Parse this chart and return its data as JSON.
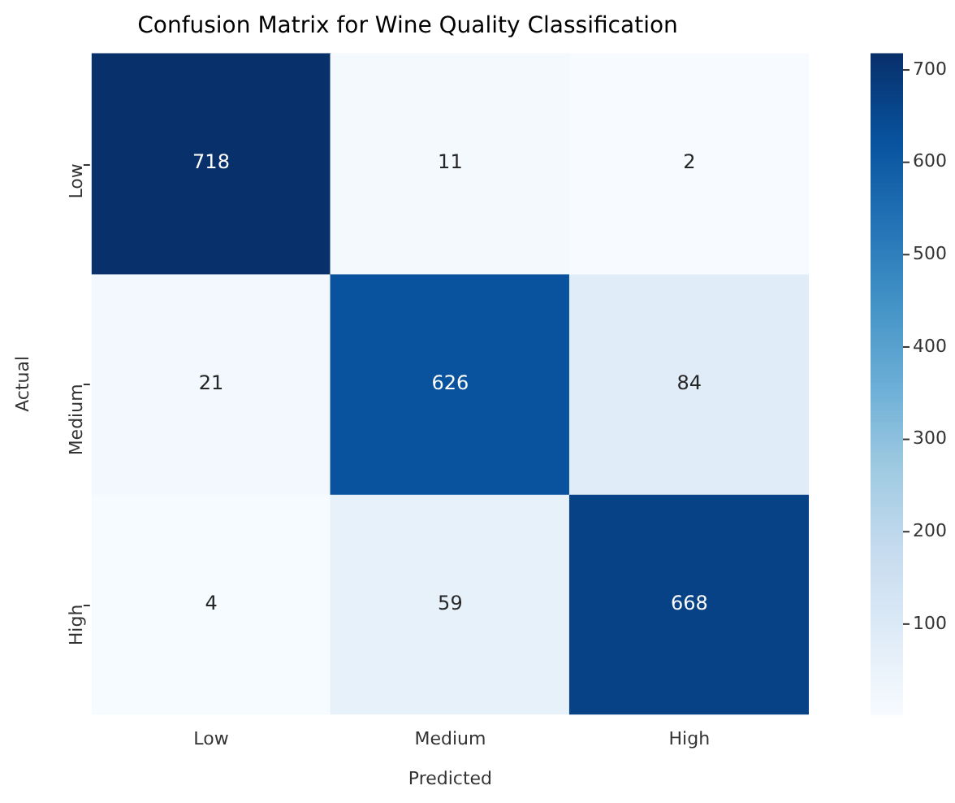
{
  "chart_data": {
    "type": "heatmap",
    "title": "Confusion Matrix for Wine Quality Classification",
    "xlabel": "Predicted",
    "ylabel": "Actual",
    "categories": [
      "Low",
      "Medium",
      "High"
    ],
    "y_categories": [
      "Low",
      "Medium",
      "High"
    ],
    "cells": [
      [
        718,
        11,
        2
      ],
      [
        21,
        626,
        84
      ],
      [
        4,
        59,
        668
      ]
    ],
    "clim": [
      2,
      718
    ],
    "cticks": [
      100,
      200,
      300,
      400,
      500,
      600,
      700
    ],
    "data_labels": true
  }
}
